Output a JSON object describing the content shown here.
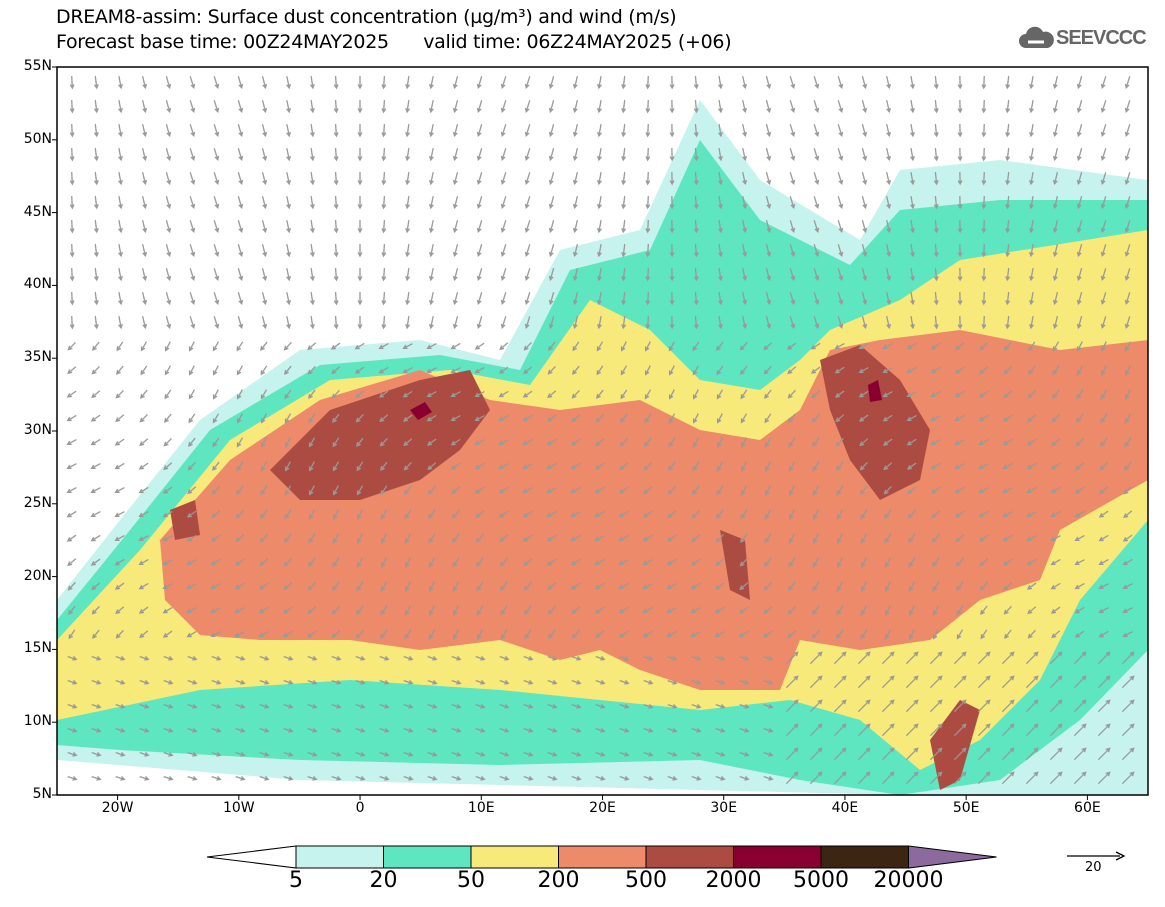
{
  "title": {
    "line1": "DREAM8-assim: Surface dust concentration (µg/m³) and wind (m/s)",
    "line2": "Forecast base time: 00Z24MAY2025      valid time: 06Z24MAY2025 (+06)"
  },
  "logo": {
    "text": "SEEVCCC",
    "icon": "cloud-icon"
  },
  "axes": {
    "lat_labels": [
      "55N",
      "50N",
      "45N",
      "40N",
      "35N",
      "30N",
      "25N",
      "20N",
      "15N",
      "10N",
      "5N"
    ],
    "lon_labels": [
      "20W",
      "10W",
      "0",
      "10E",
      "20E",
      "30E",
      "40E",
      "50E",
      "60E"
    ],
    "lon_range": [
      -25,
      65
    ],
    "lat_range": [
      5,
      55
    ]
  },
  "colorbar": {
    "labels": [
      "5",
      "20",
      "50",
      "200",
      "500",
      "2000",
      "5000",
      "20000"
    ],
    "colors": [
      "#c6f3ee",
      "#5de6c0",
      "#f8e97b",
      "#ec8a6a",
      "#ab4b41",
      "#890030",
      "#3c2513",
      "#8c6a9e"
    ]
  },
  "wind_reference": {
    "label": "20"
  }
}
